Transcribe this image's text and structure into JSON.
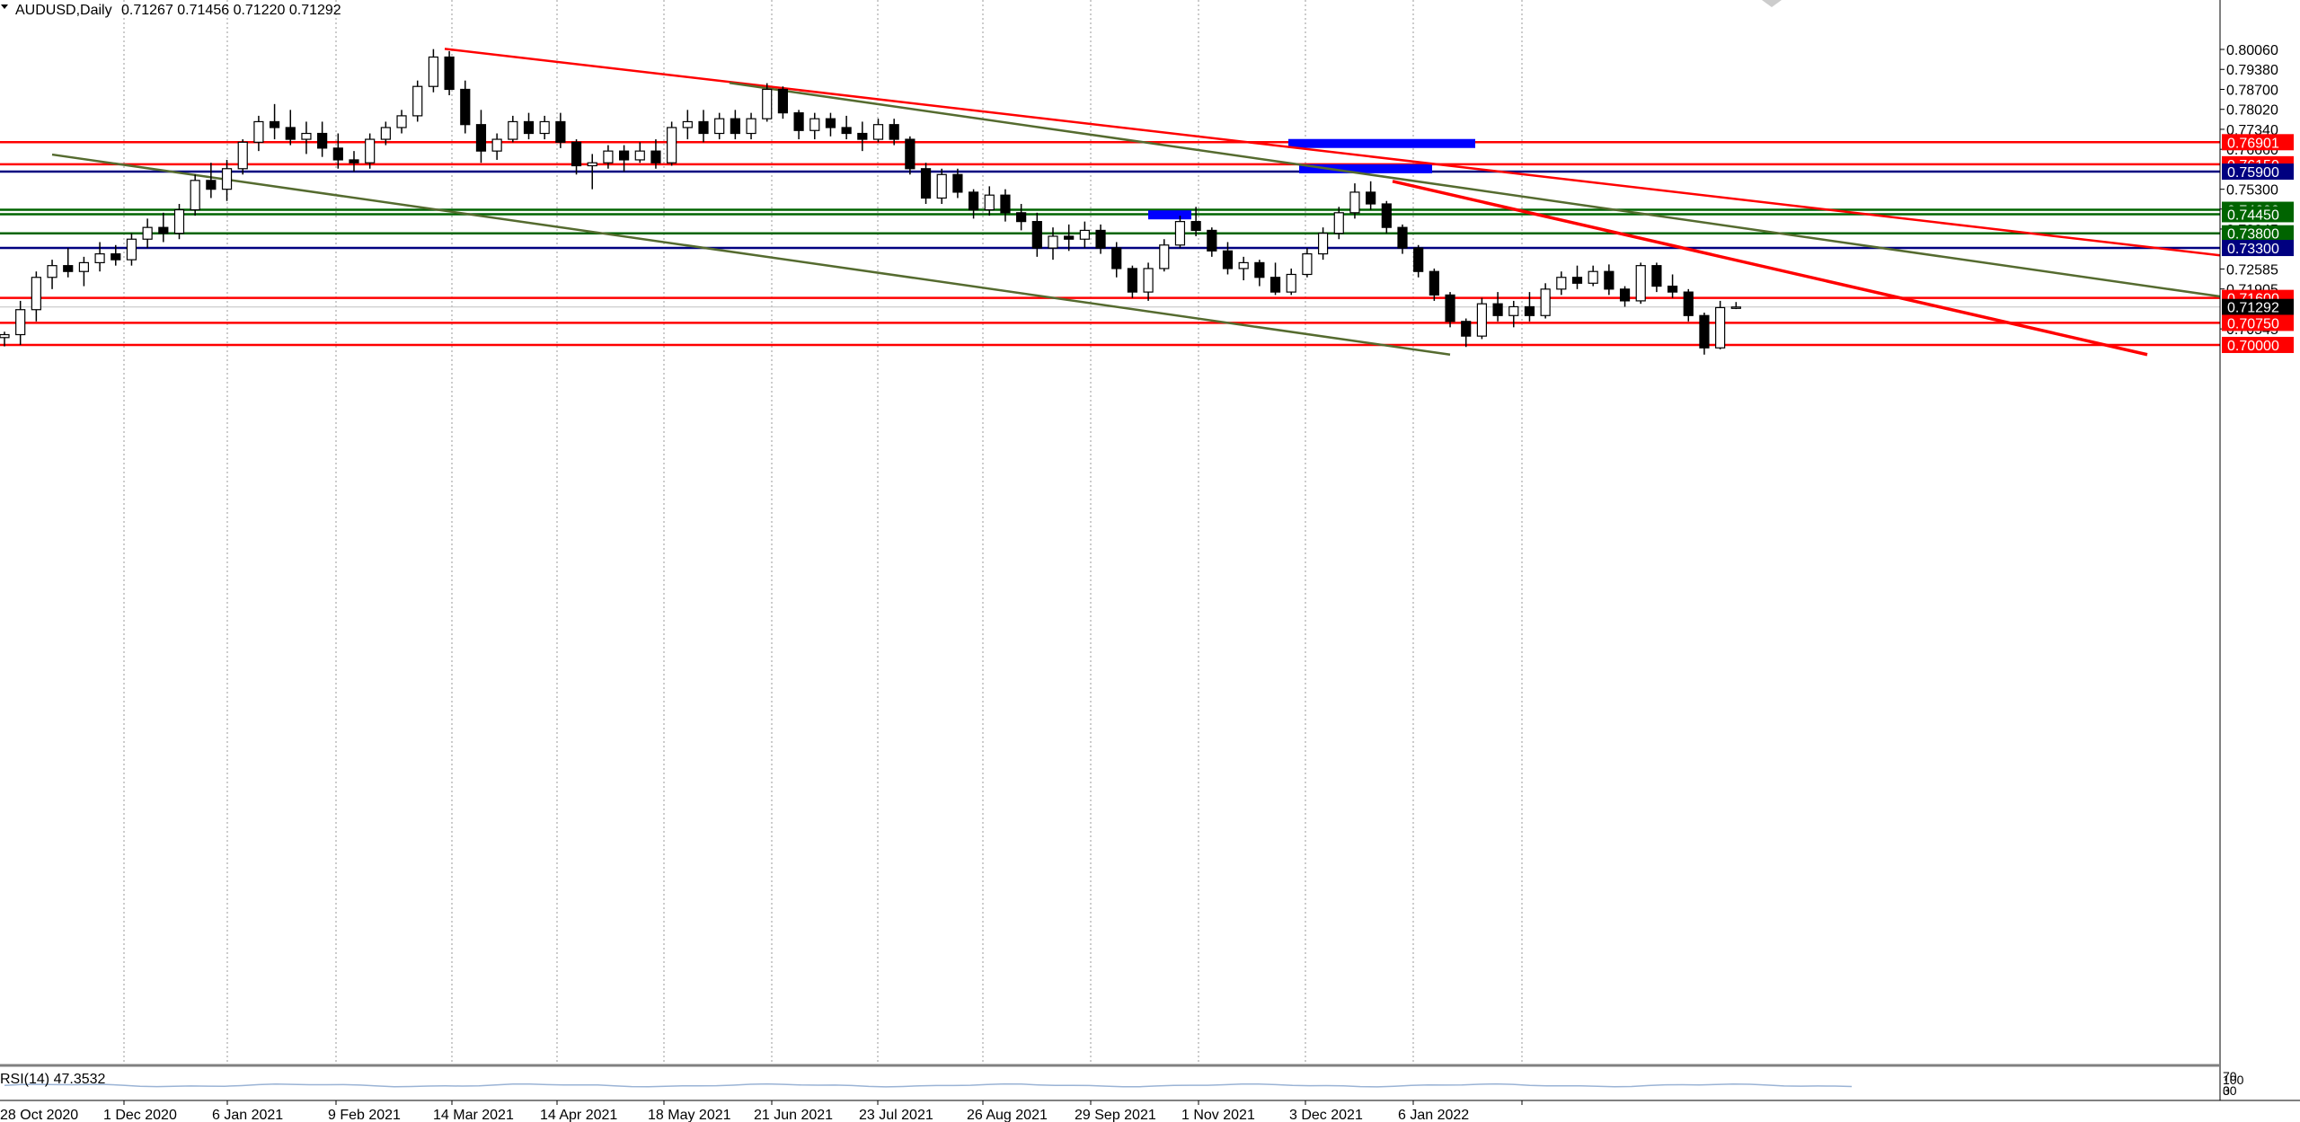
{
  "header": {
    "symbol": "AUDUSD,Daily",
    "ohlc": "0.71267 0.71456 0.71220 0.71292"
  },
  "rsi_label": "RSI(14) 47.3532",
  "rsi_scale": [
    "100",
    "70",
    "30",
    "0"
  ],
  "colors": {
    "background": "#ffffff",
    "candle": "#000000",
    "resistance": "#ff0000",
    "support_green": "#006400",
    "level_navy": "#000080",
    "trend_olive": "#556b2f",
    "zone_blue": "#0000ff",
    "rsi_line": "#9ab3d5"
  },
  "chart_data": {
    "type": "candlestick",
    "symbol": "AUDUSD",
    "timeframe": "Daily",
    "ylim": [
      0.6964,
      0.8035
    ],
    "y_ticks": [
      "0.80060",
      "0.79380",
      "0.78700",
      "0.78020",
      "0.77340",
      "0.76660",
      "0.75300",
      "0.74625",
      "0.73945",
      "0.72585",
      "0.71905",
      "0.70545"
    ],
    "x_ticks": [
      "28 Oct 2020",
      "1 Dec 2020",
      "6 Jan 2021",
      "9 Feb 2021",
      "14 Mar 2021",
      "14 Apr 2021",
      "18 May 2021",
      "21 Jun 2021",
      "23 Jul 2021",
      "26 Aug 2021",
      "29 Sep 2021",
      "1 Nov 2021",
      "3 Dec 2021",
      "6 Jan 2022"
    ],
    "horizontal_levels": [
      {
        "label": "0.76901",
        "price": 0.76901,
        "color": "#ff0000"
      },
      {
        "label": "0.76150",
        "price": 0.7615,
        "color": "#ff0000"
      },
      {
        "label": "0.75900",
        "price": 0.759,
        "color": "#000080"
      },
      {
        "label": "0.74600",
        "price": 0.746,
        "color": "#006400"
      },
      {
        "label": "0.74450",
        "price": 0.7445,
        "color": "#006400"
      },
      {
        "label": "0.73800",
        "price": 0.738,
        "color": "#006400"
      },
      {
        "label": "0.73300",
        "price": 0.733,
        "color": "#000080"
      },
      {
        "label": "0.71600",
        "price": 0.716,
        "color": "#ff0000"
      },
      {
        "label": "0.71292",
        "price": 0.71292,
        "color": "#000000"
      },
      {
        "label": "0.70750",
        "price": 0.7075,
        "color": "#ff0000"
      },
      {
        "label": "0.70000",
        "price": 0.7,
        "color": "#ff0000"
      }
    ],
    "trendlines": [
      {
        "from": [
          "9 Feb 2021",
          0.8008
        ],
        "to": [
          "late Mar 2022",
          0.7305
        ],
        "color": "#ff0000"
      },
      {
        "from": [
          "3 May 2021",
          0.7892
        ],
        "to": [
          "late Mar 2022",
          0.7165
        ],
        "color": "#556b2f"
      },
      {
        "from": [
          "27 Oct 2021",
          0.7557
        ],
        "to": [
          "mid Mar 2022",
          0.6967
        ],
        "color": "#ff0000"
      },
      {
        "from": [
          "30 Oct 2020",
          0.7648
        ],
        "to": [
          "1 Nov 2021",
          0.6967
        ],
        "color": "#556b2f"
      }
    ],
    "zones": [
      {
        "top": 0.7701,
        "bottom": 0.7689,
        "from": "29 Sep 2021",
        "to": "15 Oct 2021"
      },
      {
        "top": 0.7615,
        "bottom": 0.759,
        "from": "30 Sep 2021",
        "to": "11 Oct 2021"
      },
      {
        "top": 0.7458,
        "bottom": 0.7445,
        "from": "24 Aug 2021",
        "to": "28 Aug 2021"
      }
    ],
    "rsi": {
      "period": 14,
      "value": 47.3532
    },
    "series": [
      {
        "ohlc": [
          [
            0.7025,
            0.7045,
            0.6995,
            0.7035
          ],
          [
            0.7035,
            0.715,
            0.7,
            0.712
          ],
          [
            0.712,
            0.725,
            0.708,
            0.723
          ],
          [
            0.723,
            0.729,
            0.719,
            0.727
          ],
          [
            0.727,
            0.733,
            0.723,
            0.725
          ],
          [
            0.725,
            0.73,
            0.72,
            0.728
          ],
          [
            0.728,
            0.735,
            0.725,
            0.731
          ],
          [
            0.731,
            0.734,
            0.727,
            0.729
          ],
          [
            0.729,
            0.738,
            0.727,
            0.736
          ],
          [
            0.736,
            0.743,
            0.733,
            0.74
          ],
          [
            0.74,
            0.745,
            0.735,
            0.738
          ],
          [
            0.738,
            0.748,
            0.736,
            0.746
          ],
          [
            0.746,
            0.758,
            0.744,
            0.756
          ],
          [
            0.756,
            0.762,
            0.75,
            0.753
          ],
          [
            0.753,
            0.763,
            0.749,
            0.76
          ],
          [
            0.76,
            0.77,
            0.758,
            0.769
          ],
          [
            0.769,
            0.778,
            0.766,
            0.776
          ],
          [
            0.776,
            0.782,
            0.77,
            0.774
          ],
          [
            0.774,
            0.78,
            0.768,
            0.77
          ],
          [
            0.77,
            0.776,
            0.765,
            0.772
          ],
          [
            0.772,
            0.776,
            0.764,
            0.767
          ],
          [
            0.767,
            0.772,
            0.76,
            0.763
          ],
          [
            0.763,
            0.766,
            0.759,
            0.762
          ],
          [
            0.762,
            0.772,
            0.76,
            0.77
          ],
          [
            0.77,
            0.776,
            0.768,
            0.774
          ],
          [
            0.774,
            0.78,
            0.772,
            0.778
          ],
          [
            0.778,
            0.79,
            0.776,
            0.788
          ],
          [
            0.788,
            0.8007,
            0.786,
            0.798
          ],
          [
            0.798,
            0.8,
            0.785,
            0.787
          ],
          [
            0.787,
            0.79,
            0.772,
            0.775
          ],
          [
            0.775,
            0.78,
            0.762,
            0.766
          ],
          [
            0.766,
            0.772,
            0.763,
            0.77
          ],
          [
            0.77,
            0.778,
            0.769,
            0.776
          ],
          [
            0.776,
            0.779,
            0.77,
            0.772
          ],
          [
            0.772,
            0.778,
            0.77,
            0.776
          ],
          [
            0.776,
            0.779,
            0.767,
            0.769
          ],
          [
            0.769,
            0.77,
            0.758,
            0.761
          ],
          [
            0.761,
            0.765,
            0.753,
            0.762
          ],
          [
            0.762,
            0.768,
            0.76,
            0.766
          ],
          [
            0.766,
            0.768,
            0.759,
            0.763
          ],
          [
            0.763,
            0.769,
            0.762,
            0.766
          ],
          [
            0.766,
            0.77,
            0.76,
            0.762
          ],
          [
            0.762,
            0.776,
            0.761,
            0.774
          ],
          [
            0.774,
            0.78,
            0.77,
            0.776
          ],
          [
            0.776,
            0.78,
            0.769,
            0.772
          ],
          [
            0.772,
            0.779,
            0.77,
            0.777
          ],
          [
            0.777,
            0.78,
            0.77,
            0.772
          ],
          [
            0.772,
            0.779,
            0.77,
            0.777
          ],
          [
            0.777,
            0.7891,
            0.776,
            0.787
          ],
          [
            0.787,
            0.788,
            0.777,
            0.779
          ],
          [
            0.779,
            0.78,
            0.77,
            0.773
          ],
          [
            0.773,
            0.779,
            0.77,
            0.777
          ],
          [
            0.777,
            0.779,
            0.771,
            0.774
          ],
          [
            0.774,
            0.778,
            0.77,
            0.772
          ],
          [
            0.772,
            0.776,
            0.766,
            0.77
          ],
          [
            0.77,
            0.777,
            0.769,
            0.775
          ],
          [
            0.775,
            0.777,
            0.768,
            0.77
          ],
          [
            0.77,
            0.771,
            0.758,
            0.76
          ],
          [
            0.76,
            0.762,
            0.748,
            0.75
          ],
          [
            0.75,
            0.76,
            0.748,
            0.758
          ],
          [
            0.758,
            0.76,
            0.75,
            0.752
          ],
          [
            0.752,
            0.753,
            0.743,
            0.746
          ],
          [
            0.746,
            0.754,
            0.744,
            0.751
          ],
          [
            0.751,
            0.753,
            0.742,
            0.745
          ],
          [
            0.745,
            0.748,
            0.739,
            0.742
          ],
          [
            0.742,
            0.745,
            0.73,
            0.733
          ],
          [
            0.733,
            0.74,
            0.729,
            0.737
          ],
          [
            0.737,
            0.741,
            0.732,
            0.736
          ],
          [
            0.736,
            0.742,
            0.733,
            0.739
          ],
          [
            0.739,
            0.741,
            0.731,
            0.733
          ],
          [
            0.733,
            0.735,
            0.723,
            0.726
          ],
          [
            0.726,
            0.727,
            0.716,
            0.718
          ],
          [
            0.718,
            0.728,
            0.715,
            0.726
          ],
          [
            0.726,
            0.736,
            0.725,
            0.734
          ],
          [
            0.734,
            0.744,
            0.733,
            0.742
          ],
          [
            0.742,
            0.747,
            0.737,
            0.739
          ],
          [
            0.739,
            0.74,
            0.73,
            0.732
          ],
          [
            0.732,
            0.735,
            0.724,
            0.726
          ],
          [
            0.726,
            0.73,
            0.722,
            0.728
          ],
          [
            0.728,
            0.729,
            0.72,
            0.723
          ],
          [
            0.723,
            0.728,
            0.717,
            0.718
          ],
          [
            0.718,
            0.726,
            0.717,
            0.724
          ],
          [
            0.724,
            0.733,
            0.723,
            0.731
          ],
          [
            0.731,
            0.74,
            0.729,
            0.738
          ],
          [
            0.738,
            0.747,
            0.736,
            0.745
          ],
          [
            0.745,
            0.755,
            0.743,
            0.752
          ],
          [
            0.752,
            0.7557,
            0.746,
            0.748
          ],
          [
            0.748,
            0.749,
            0.738,
            0.74
          ],
          [
            0.74,
            0.741,
            0.731,
            0.733
          ],
          [
            0.733,
            0.734,
            0.723,
            0.725
          ],
          [
            0.725,
            0.726,
            0.715,
            0.717
          ],
          [
            0.717,
            0.718,
            0.706,
            0.708
          ],
          [
            0.708,
            0.709,
            0.6993,
            0.703
          ],
          [
            0.703,
            0.716,
            0.702,
            0.714
          ],
          [
            0.714,
            0.718,
            0.708,
            0.71
          ],
          [
            0.71,
            0.715,
            0.706,
            0.713
          ],
          [
            0.713,
            0.718,
            0.708,
            0.71
          ],
          [
            0.71,
            0.721,
            0.709,
            0.719
          ],
          [
            0.719,
            0.725,
            0.717,
            0.723
          ],
          [
            0.723,
            0.727,
            0.719,
            0.721
          ],
          [
            0.721,
            0.727,
            0.72,
            0.725
          ],
          [
            0.725,
            0.7274,
            0.717,
            0.719
          ],
          [
            0.719,
            0.72,
            0.713,
            0.715
          ],
          [
            0.715,
            0.728,
            0.714,
            0.727
          ],
          [
            0.727,
            0.728,
            0.718,
            0.72
          ],
          [
            0.72,
            0.724,
            0.716,
            0.718
          ],
          [
            0.718,
            0.719,
            0.708,
            0.71
          ],
          [
            0.71,
            0.711,
            0.6967,
            0.699
          ],
          [
            0.699,
            0.715,
            0.6985,
            0.7127
          ],
          [
            0.7127,
            0.7146,
            0.7122,
            0.7129
          ]
        ]
      }
    ]
  }
}
